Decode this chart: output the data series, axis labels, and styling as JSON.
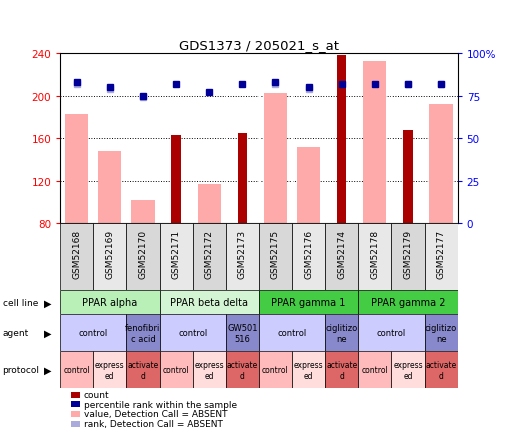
{
  "title": "GDS1373 / 205021_s_at",
  "samples": [
    "GSM52168",
    "GSM52169",
    "GSM52170",
    "GSM52171",
    "GSM52172",
    "GSM52173",
    "GSM52175",
    "GSM52176",
    "GSM52174",
    "GSM52178",
    "GSM52179",
    "GSM52177"
  ],
  "count_values": [
    null,
    null,
    null,
    163,
    null,
    165,
    null,
    null,
    238,
    null,
    168,
    null
  ],
  "value_absent": [
    183,
    148,
    102,
    80,
    117,
    80,
    203,
    152,
    80,
    233,
    80,
    192
  ],
  "percentile_absent": [
    83,
    80,
    75,
    82,
    77,
    82,
    83,
    80,
    82,
    82,
    82,
    82
  ],
  "rank_absent_pct": [
    82,
    79,
    74,
    null,
    null,
    null,
    82,
    79,
    null,
    null,
    82,
    82
  ],
  "ylim": [
    80,
    240
  ],
  "y2lim": [
    0,
    100
  ],
  "yticks": [
    80,
    120,
    160,
    200,
    240
  ],
  "y2ticks": [
    0,
    25,
    50,
    75,
    100
  ],
  "y2tick_labels": [
    "0",
    "25",
    "50",
    "75",
    "100%"
  ],
  "cell_line_groups": [
    {
      "label": "PPAR alpha",
      "start": 0,
      "end": 3,
      "color": "#b8f0b8"
    },
    {
      "label": "PPAR beta delta",
      "start": 3,
      "end": 6,
      "color": "#d4f5d4"
    },
    {
      "label": "PPAR gamma 1",
      "start": 6,
      "end": 9,
      "color": "#44cc44"
    },
    {
      "label": "PPAR gamma 2",
      "start": 9,
      "end": 12,
      "color": "#44cc44"
    }
  ],
  "agent_groups": [
    {
      "label": "control",
      "start": 0,
      "end": 2,
      "color": "#ccccff"
    },
    {
      "label": "fenofibri\nc acid",
      "start": 2,
      "end": 3,
      "color": "#8888cc"
    },
    {
      "label": "control",
      "start": 3,
      "end": 5,
      "color": "#ccccff"
    },
    {
      "label": "GW501\n516",
      "start": 5,
      "end": 6,
      "color": "#8888cc"
    },
    {
      "label": "control",
      "start": 6,
      "end": 8,
      "color": "#ccccff"
    },
    {
      "label": "ciglitizo\nne",
      "start": 8,
      "end": 9,
      "color": "#8888cc"
    },
    {
      "label": "control",
      "start": 9,
      "end": 11,
      "color": "#ccccff"
    },
    {
      "label": "ciglitizo\nne",
      "start": 11,
      "end": 12,
      "color": "#8888cc"
    }
  ],
  "protocol_groups": [
    {
      "label": "control",
      "start": 0,
      "end": 1,
      "color": "#ffbbbb"
    },
    {
      "label": "express\ned",
      "start": 1,
      "end": 2,
      "color": "#ffdddd"
    },
    {
      "label": "activate\nd",
      "start": 2,
      "end": 3,
      "color": "#dd6666"
    },
    {
      "label": "control",
      "start": 3,
      "end": 4,
      "color": "#ffbbbb"
    },
    {
      "label": "express\ned",
      "start": 4,
      "end": 5,
      "color": "#ffdddd"
    },
    {
      "label": "activate\nd",
      "start": 5,
      "end": 6,
      "color": "#dd6666"
    },
    {
      "label": "control",
      "start": 6,
      "end": 7,
      "color": "#ffbbbb"
    },
    {
      "label": "express\ned",
      "start": 7,
      "end": 8,
      "color": "#ffdddd"
    },
    {
      "label": "activate\nd",
      "start": 8,
      "end": 9,
      "color": "#dd6666"
    },
    {
      "label": "control",
      "start": 9,
      "end": 10,
      "color": "#ffbbbb"
    },
    {
      "label": "express\ned",
      "start": 10,
      "end": 11,
      "color": "#ffdddd"
    },
    {
      "label": "activate\nd",
      "start": 11,
      "end": 12,
      "color": "#dd6666"
    }
  ],
  "count_color": "#aa0000",
  "value_absent_color": "#ffaaaa",
  "percentile_color": "#000099",
  "rank_absent_color": "#aaaadd",
  "background_color": "#ffffff"
}
